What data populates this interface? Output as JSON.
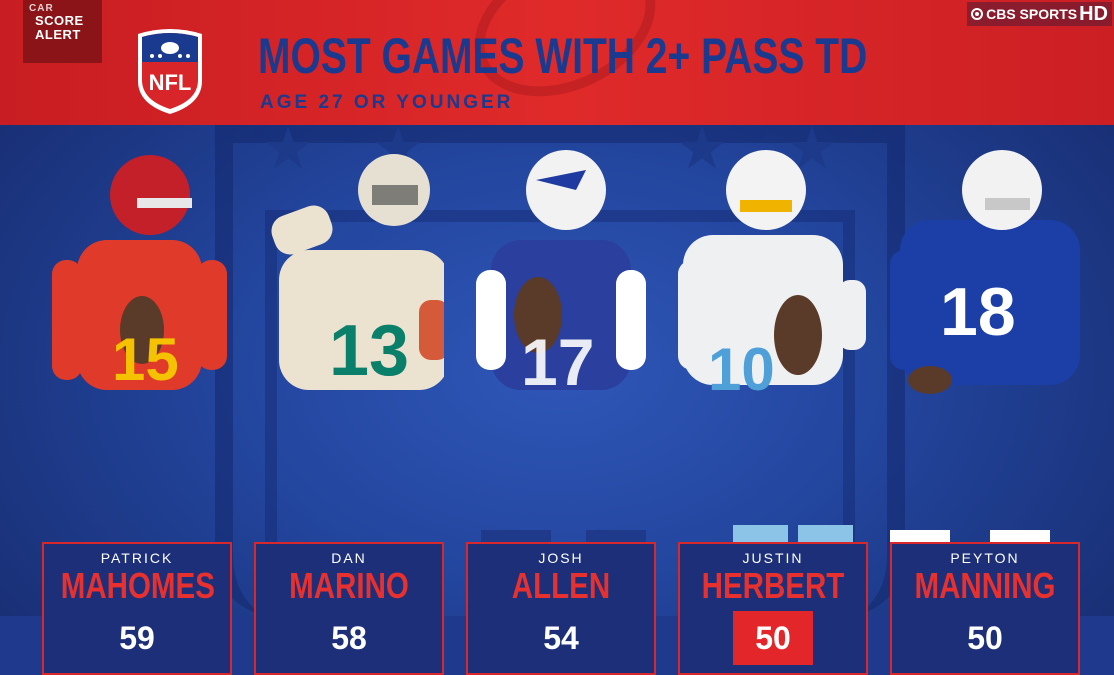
{
  "network": {
    "brand": "CBS SPORTS",
    "hd": "HD"
  },
  "score_alert": {
    "top": "CAR",
    "line1": "SCORE",
    "line2": "ALERT"
  },
  "nfl_logo": {
    "text": "NFL"
  },
  "header": {
    "title": "MOST GAMES WITH 2+ PASS TD",
    "subtitle": "AGE 27 OR YOUNGER"
  },
  "colors": {
    "header_red": "#d8252a",
    "navy": "#1a3a8f",
    "card_bg": "#1c2f78",
    "accent_red": "#e2262a"
  },
  "players": [
    {
      "first": "PATRICK",
      "last": "MAHOMES",
      "games": "59",
      "jersey": "15",
      "highlight": false
    },
    {
      "first": "DAN",
      "last": "MARINO",
      "games": "58",
      "jersey": "13",
      "highlight": false
    },
    {
      "first": "JOSH",
      "last": "ALLEN",
      "games": "54",
      "jersey": "17",
      "highlight": false
    },
    {
      "first": "JUSTIN",
      "last": "HERBERT",
      "games": "50",
      "jersey": "10",
      "highlight": true
    },
    {
      "first": "PEYTON",
      "last": "MANNING",
      "games": "50",
      "jersey": "18",
      "highlight": false
    }
  ]
}
